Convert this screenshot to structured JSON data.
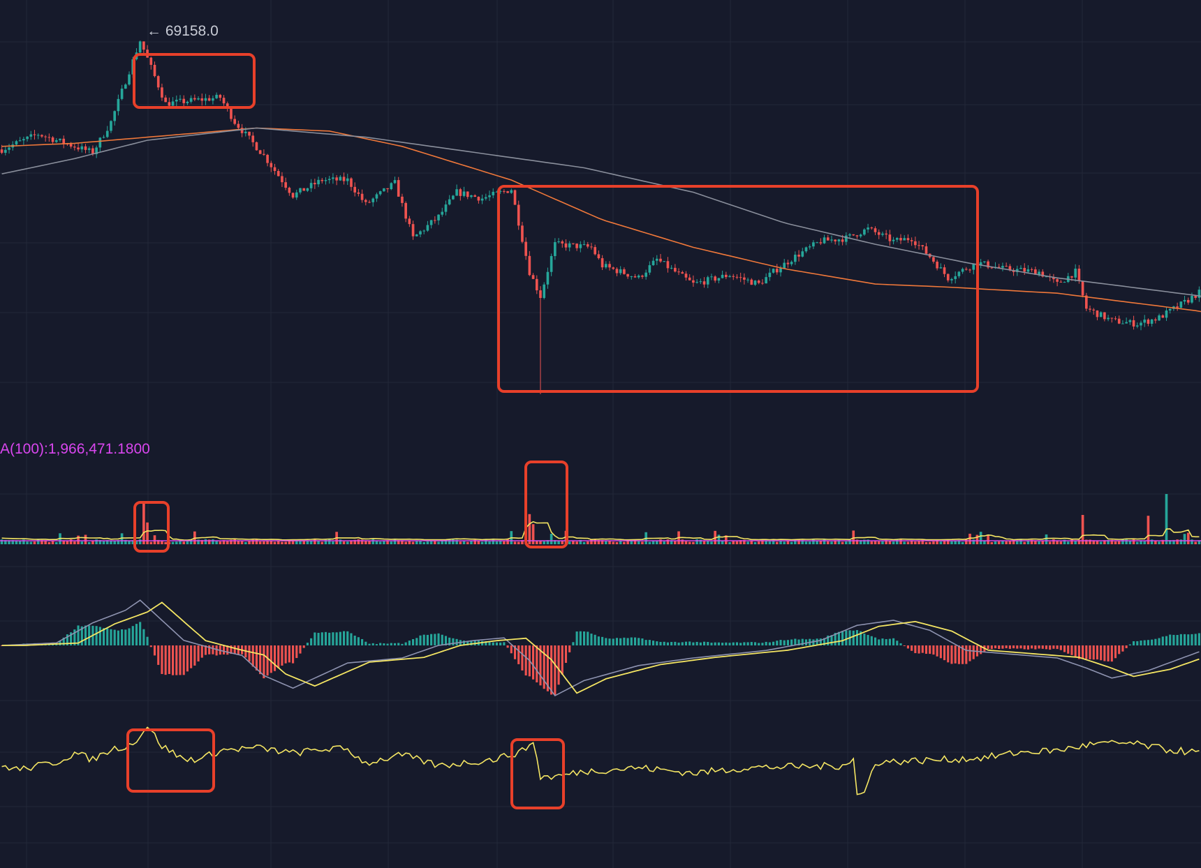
{
  "chart_data": {
    "type": "candlestick",
    "theme": {
      "background": "#161a2b",
      "grid": "#232838",
      "up": "#26a69a",
      "down": "#ef5350",
      "volume_ma_color": "#d946ef",
      "highlight_color": "#e8402a"
    },
    "price_panel": {
      "max_price_label": "← 69158.0",
      "max_price": 69158.0,
      "y_range": [
        56800,
        69800
      ],
      "candle_count": 330,
      "anchors": [
        [
          0,
          65600
        ],
        [
          10,
          66100
        ],
        [
          25,
          65500
        ],
        [
          30,
          66500
        ],
        [
          38,
          69158
        ],
        [
          45,
          67100
        ],
        [
          60,
          67300
        ],
        [
          64,
          66500
        ],
        [
          72,
          65400
        ],
        [
          80,
          64100
        ],
        [
          88,
          64600
        ],
        [
          95,
          64600
        ],
        [
          100,
          63800
        ],
        [
          108,
          64500
        ],
        [
          113,
          62700
        ],
        [
          120,
          63400
        ],
        [
          125,
          64200
        ],
        [
          132,
          64000
        ],
        [
          140,
          64300
        ],
        [
          145,
          61600
        ],
        [
          148,
          60800
        ],
        [
          152,
          62500
        ],
        [
          162,
          62400
        ],
        [
          165,
          61800
        ],
        [
          175,
          61400
        ],
        [
          180,
          62000
        ],
        [
          190,
          61200
        ],
        [
          200,
          61500
        ],
        [
          208,
          61200
        ],
        [
          212,
          61600
        ],
        [
          218,
          62100
        ],
        [
          225,
          62600
        ],
        [
          232,
          62700
        ],
        [
          238,
          63000
        ],
        [
          245,
          62600
        ],
        [
          250,
          62700
        ],
        [
          255,
          62100
        ],
        [
          260,
          61400
        ],
        [
          268,
          61900
        ],
        [
          275,
          61700
        ],
        [
          285,
          61600
        ],
        [
          290,
          61200
        ],
        [
          295,
          61600
        ],
        [
          298,
          60400
        ],
        [
          305,
          60000
        ],
        [
          312,
          59900
        ],
        [
          318,
          60100
        ],
        [
          325,
          60600
        ],
        [
          330,
          61000
        ]
      ],
      "indicator_lines": [
        {
          "name": "orange-ma",
          "color": "#f0783a",
          "points": [
            [
              0,
              65700
            ],
            [
              20,
              65800
            ],
            [
              40,
              66000
            ],
            [
              70,
              66300
            ],
            [
              90,
              66200
            ],
            [
              110,
              65700
            ],
            [
              140,
              64600
            ],
            [
              165,
              63300
            ],
            [
              190,
              62400
            ],
            [
              215,
              61700
            ],
            [
              240,
              61200
            ],
            [
              260,
              61100
            ],
            [
              290,
              60900
            ],
            [
              330,
              60300
            ]
          ]
        },
        {
          "name": "gray-ma",
          "color": "#8a8f9c",
          "points": [
            [
              0,
              64800
            ],
            [
              20,
              65300
            ],
            [
              40,
              65900
            ],
            [
              70,
              66300
            ],
            [
              100,
              66000
            ],
            [
              130,
              65500
            ],
            [
              160,
              65000
            ],
            [
              190,
              64200
            ],
            [
              215,
              63200
            ],
            [
              240,
              62500
            ],
            [
              265,
              61900
            ],
            [
              290,
              61400
            ],
            [
              330,
              60800
            ]
          ]
        }
      ]
    },
    "volume_panel": {
      "label": "A(100):1,966,471.1800",
      "spikes": [
        [
          39,
          5
        ],
        [
          40,
          2.6
        ],
        [
          144,
          9
        ],
        [
          145,
          3.6
        ],
        [
          146,
          2.4
        ],
        [
          320,
          6
        ],
        [
          297,
          3.5
        ],
        [
          315,
          3.4
        ]
      ]
    },
    "macd_panel": {
      "anchors": [
        [
          0,
          0
        ],
        [
          15,
          0.1
        ],
        [
          25,
          0.9
        ],
        [
          34,
          1.4
        ],
        [
          38,
          1.8
        ],
        [
          50,
          0.2
        ],
        [
          60,
          -0.2
        ],
        [
          66,
          -0.4
        ],
        [
          72,
          -1.2
        ],
        [
          80,
          -1.7
        ],
        [
          95,
          -0.7
        ],
        [
          110,
          -0.5
        ],
        [
          120,
          0.0
        ],
        [
          130,
          0.2
        ],
        [
          138,
          0.3
        ],
        [
          145,
          -0.6
        ],
        [
          152,
          -2.0
        ],
        [
          160,
          -1.4
        ],
        [
          175,
          -0.8
        ],
        [
          190,
          -0.5
        ],
        [
          210,
          -0.2
        ],
        [
          225,
          0.2
        ],
        [
          235,
          0.8
        ],
        [
          245,
          1.0
        ],
        [
          255,
          0.6
        ],
        [
          265,
          -0.2
        ],
        [
          290,
          -0.5
        ],
        [
          298,
          -0.9
        ],
        [
          305,
          -1.3
        ],
        [
          315,
          -1.0
        ],
        [
          330,
          -0.2
        ]
      ]
    },
    "oscillator_panel": {
      "anchors": [
        [
          0,
          0.48
        ],
        [
          5,
          0.44
        ],
        [
          15,
          0.52
        ],
        [
          20,
          0.62
        ],
        [
          25,
          0.55
        ],
        [
          30,
          0.66
        ],
        [
          36,
          0.72
        ],
        [
          40,
          0.92
        ],
        [
          44,
          0.7
        ],
        [
          50,
          0.55
        ],
        [
          55,
          0.56
        ],
        [
          60,
          0.65
        ],
        [
          70,
          0.68
        ],
        [
          80,
          0.62
        ],
        [
          90,
          0.67
        ],
        [
          95,
          0.66
        ],
        [
          100,
          0.51
        ],
        [
          110,
          0.6
        ],
        [
          120,
          0.48
        ],
        [
          135,
          0.55
        ],
        [
          143,
          0.64
        ],
        [
          146,
          0.75
        ],
        [
          148,
          0.36
        ],
        [
          152,
          0.36
        ],
        [
          160,
          0.42
        ],
        [
          175,
          0.46
        ],
        [
          190,
          0.4
        ],
        [
          205,
          0.46
        ],
        [
          230,
          0.48
        ],
        [
          234,
          0.55
        ],
        [
          235,
          0.16
        ],
        [
          237,
          0.18
        ],
        [
          240,
          0.52
        ],
        [
          260,
          0.55
        ],
        [
          270,
          0.57
        ],
        [
          280,
          0.63
        ],
        [
          290,
          0.65
        ],
        [
          300,
          0.72
        ],
        [
          310,
          0.73
        ],
        [
          320,
          0.66
        ],
        [
          330,
          0.62
        ]
      ]
    },
    "highlight_boxes_note": "red rectangles drawn around marked regions"
  }
}
